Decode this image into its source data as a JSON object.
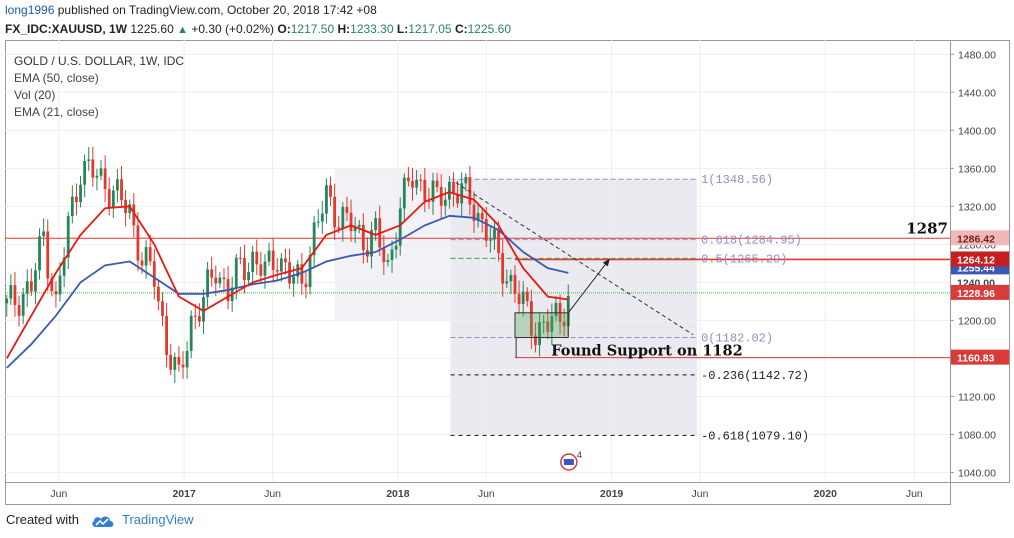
{
  "header": {
    "user": "long1996",
    "published_text": "published on TradingView.com, October 20, 2018 17:42 +08",
    "symbol": "FX_IDC:XAUUSD, 1W",
    "last": "1225.60",
    "arrow": "▲",
    "change": "+0.30 (+0.02%)",
    "o_label": "O:",
    "o_value": "1217.50",
    "h_label": "H:",
    "h_value": "1233.30",
    "l_label": "L:",
    "l_value": "1217.05",
    "c_label": "C:",
    "c_value": "1225.60"
  },
  "legend": {
    "title": "GOLD / U.S. DOLLAR, 1W, IDC",
    "items": [
      "EMA (50, close)",
      "Vol (20)",
      "EMA (21, close)"
    ]
  },
  "footer": {
    "created_with": "Created with",
    "brand": "TradingView"
  },
  "colors": {
    "up": "#26865a",
    "down": "#e0392d",
    "ema21": "#e8190f",
    "ema50": "#3b58b5",
    "fib": "#8e8fc4",
    "support": "#d93b3b",
    "green_line": "#3bbf3b",
    "accent": "#2f7fd3"
  },
  "chart_data": {
    "type": "candlestick",
    "title": "GOLD / U.S. DOLLAR, 1W, IDC",
    "x_start": "2016-03-01",
    "x_end": "2020-08-01",
    "ylim": [
      1030,
      1495
    ],
    "y_ticks": [
      1040,
      1080,
      1120,
      1160,
      1200,
      1240,
      1280,
      1320,
      1360,
      1400,
      1440,
      1480
    ],
    "y_tick_labels": [
      "1040.00",
      "1080.00",
      "1120.00",
      "1160.00",
      "1200.00",
      "1240.00",
      "1280.00",
      "1320.00",
      "1360.00",
      "1400.00",
      "1440.00",
      "1480.00"
    ],
    "x_ticks": [
      {
        "label": "Jun",
        "date": "2016-06-01"
      },
      {
        "label": "2017",
        "date": "2017-01-01",
        "bold": true
      },
      {
        "label": "Jun",
        "date": "2017-06-01"
      },
      {
        "label": "2018",
        "date": "2018-01-01",
        "bold": true
      },
      {
        "label": "Jun",
        "date": "2018-06-01"
      },
      {
        "label": "2019",
        "date": "2019-01-01",
        "bold": true
      },
      {
        "label": "Jun",
        "date": "2019-06-01"
      },
      {
        "label": "2020",
        "date": "2020-01-01",
        "bold": true
      },
      {
        "label": "Jun",
        "date": "2020-06-01"
      }
    ],
    "closes": [
      [
        "2016-03-04",
        1215
      ],
      [
        "2016-03-25",
        1225
      ],
      [
        "2016-04-15",
        1235
      ],
      [
        "2016-05-06",
        1290
      ],
      [
        "2016-05-27",
        1215
      ],
      [
        "2016-06-17",
        1300
      ],
      [
        "2016-07-08",
        1360
      ],
      [
        "2016-07-29",
        1355
      ],
      [
        "2016-08-19",
        1345
      ],
      [
        "2016-09-09",
        1330
      ],
      [
        "2016-09-30",
        1315
      ],
      [
        "2016-10-21",
        1265
      ],
      [
        "2016-11-11",
        1245
      ],
      [
        "2016-12-02",
        1175
      ],
      [
        "2016-12-23",
        1135
      ],
      [
        "2017-01-13",
        1200
      ],
      [
        "2017-02-03",
        1220
      ],
      [
        "2017-02-24",
        1255
      ],
      [
        "2017-03-17",
        1230
      ],
      [
        "2017-04-07",
        1255
      ],
      [
        "2017-04-28",
        1265
      ],
      [
        "2017-05-19",
        1250
      ],
      [
        "2017-06-09",
        1270
      ],
      [
        "2017-06-30",
        1245
      ],
      [
        "2017-07-21",
        1240
      ],
      [
        "2017-08-11",
        1290
      ],
      [
        "2017-09-01",
        1330
      ],
      [
        "2017-09-22",
        1310
      ],
      [
        "2017-10-13",
        1300
      ],
      [
        "2017-11-03",
        1285
      ],
      [
        "2017-11-24",
        1290
      ],
      [
        "2017-12-15",
        1255
      ],
      [
        "2018-01-05",
        1320
      ],
      [
        "2018-01-26",
        1350
      ],
      [
        "2018-02-16",
        1340
      ],
      [
        "2018-03-09",
        1325
      ],
      [
        "2018-03-30",
        1340
      ],
      [
        "2018-04-20",
        1335
      ],
      [
        "2018-05-11",
        1320
      ],
      [
        "2018-06-01",
        1295
      ],
      [
        "2018-06-22",
        1265
      ],
      [
        "2018-07-13",
        1240
      ],
      [
        "2018-08-03",
        1215
      ],
      [
        "2018-08-24",
        1190
      ],
      [
        "2018-09-14",
        1195
      ],
      [
        "2018-10-05",
        1205
      ],
      [
        "2018-10-19",
        1225.6
      ]
    ],
    "ema21": [
      [
        "2016-03-04",
        1160
      ],
      [
        "2016-04-15",
        1205
      ],
      [
        "2016-05-27",
        1250
      ],
      [
        "2016-07-08",
        1290
      ],
      [
        "2016-08-19",
        1318
      ],
      [
        "2016-09-30",
        1320
      ],
      [
        "2016-11-11",
        1280
      ],
      [
        "2016-12-23",
        1225
      ],
      [
        "2017-02-03",
        1210
      ],
      [
        "2017-03-17",
        1225
      ],
      [
        "2017-04-28",
        1240
      ],
      [
        "2017-06-09",
        1248
      ],
      [
        "2017-07-21",
        1255
      ],
      [
        "2017-09-01",
        1290
      ],
      [
        "2017-10-13",
        1300
      ],
      [
        "2017-11-24",
        1290
      ],
      [
        "2018-01-05",
        1300
      ],
      [
        "2018-02-16",
        1325
      ],
      [
        "2018-03-30",
        1335
      ],
      [
        "2018-05-11",
        1327
      ],
      [
        "2018-06-22",
        1300
      ],
      [
        "2018-08-03",
        1255
      ],
      [
        "2018-09-14",
        1225
      ],
      [
        "2018-10-19",
        1222
      ]
    ],
    "ema50": [
      [
        "2016-03-04",
        1150
      ],
      [
        "2016-04-15",
        1175
      ],
      [
        "2016-05-27",
        1205
      ],
      [
        "2016-07-08",
        1240
      ],
      [
        "2016-08-19",
        1258
      ],
      [
        "2016-09-30",
        1262
      ],
      [
        "2016-11-11",
        1245
      ],
      [
        "2016-12-23",
        1228
      ],
      [
        "2017-02-03",
        1228
      ],
      [
        "2017-03-17",
        1232
      ],
      [
        "2017-04-28",
        1238
      ],
      [
        "2017-06-09",
        1242
      ],
      [
        "2017-07-21",
        1250
      ],
      [
        "2017-09-01",
        1262
      ],
      [
        "2017-10-13",
        1268
      ],
      [
        "2017-11-24",
        1272
      ],
      [
        "2018-01-05",
        1285
      ],
      [
        "2018-02-16",
        1300
      ],
      [
        "2018-03-30",
        1310
      ],
      [
        "2018-05-11",
        1308
      ],
      [
        "2018-06-22",
        1295
      ],
      [
        "2018-08-03",
        1272
      ],
      [
        "2018-09-14",
        1255
      ],
      [
        "2018-10-19",
        1250
      ]
    ],
    "fibonacci": [
      {
        "label": "1(1348.56)",
        "value": 1348.56
      },
      {
        "label": "0.618(1284.95)",
        "value": 1284.95
      },
      {
        "label": "0.5(1265.29)",
        "value": 1265.29
      },
      {
        "label": "0(1182.02)",
        "value": 1182.02
      },
      {
        "label": "-0.236(1142.72)",
        "value": 1142.72
      },
      {
        "label": "-0.618(1079.10)",
        "value": 1079.1
      }
    ],
    "horizontal_lines": [
      {
        "value": 1286.42,
        "label": "1286.42"
      },
      {
        "value": 1264.12,
        "label": "1264.12"
      },
      {
        "value": 1228.96,
        "label": "1228.96"
      },
      {
        "value": 1160.83,
        "label": "1160.83"
      }
    ],
    "hidden_price_labels": [
      "1255.44",
      "1240.00"
    ],
    "annotations": [
      {
        "text": "1287",
        "value": 1287
      },
      {
        "text": "Found Support on 1182",
        "value": 1160.83
      }
    ],
    "support_box": {
      "x0": "2018-07-20",
      "x1": "2018-10-19",
      "y0": 1182,
      "y1": 1208
    },
    "fib_box": {
      "x0": "2018-04-01",
      "x1": "2019-05-27",
      "y0": 1079.1,
      "y1": 1348.56
    },
    "downtrend_line": {
      "x0": "2018-04-10",
      "y0": 1345,
      "x1": "2019-05-20",
      "y1": 1185
    },
    "projection_arrow": {
      "x0": "2018-10-19",
      "y0": 1208,
      "x1": "2018-12-29",
      "y1": 1265
    },
    "event_badge": "4",
    "grid": true
  }
}
